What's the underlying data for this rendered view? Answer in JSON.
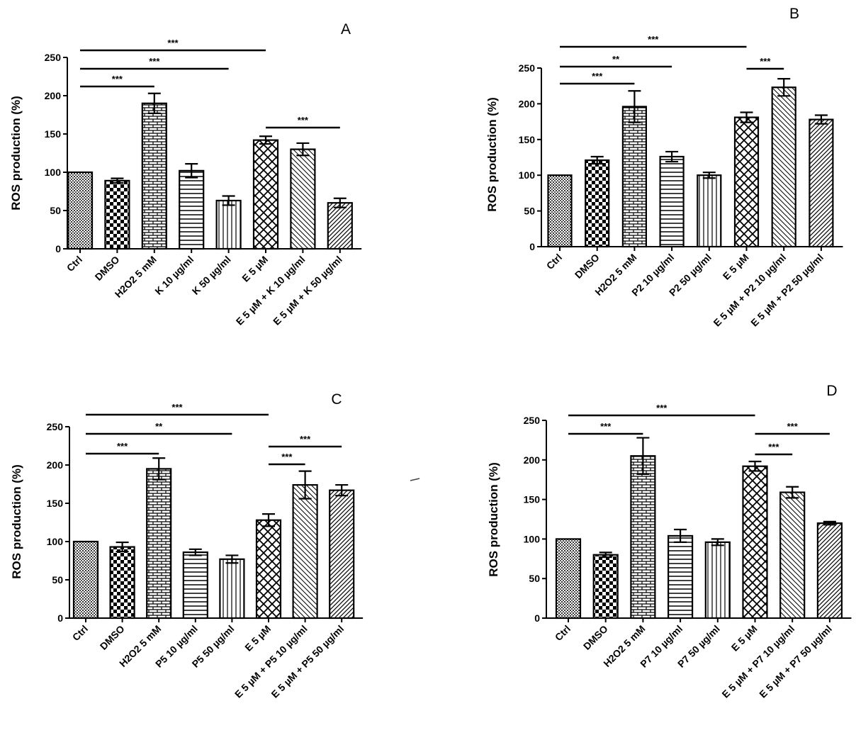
{
  "chart_data": [
    {
      "type": "bar",
      "panel": "A",
      "ylabel": "ROS production (%)",
      "ylim": [
        0,
        250
      ],
      "yticks": [
        0,
        50,
        100,
        150,
        200,
        250
      ],
      "categories": [
        "Ctrl",
        "DMSO",
        "H2O2 5 mM",
        "K 10 µg/ml",
        "K 50 µg/ml",
        "E 5 µM",
        "E 5 µM + K 10 µg/ml",
        "E 5 µM + K 50 µg/ml"
      ],
      "values": [
        100,
        89,
        190,
        102,
        63,
        142,
        130,
        60
      ],
      "errors": [
        0,
        3,
        13,
        9,
        6,
        5,
        8,
        6
      ],
      "significance": [
        {
          "from": 0,
          "to": 2,
          "label": "***"
        },
        {
          "from": 0,
          "to": 4,
          "label": "***"
        },
        {
          "from": 0,
          "to": 5,
          "label": "***"
        },
        {
          "from": 5,
          "to": 7,
          "label": "***"
        }
      ]
    },
    {
      "type": "bar",
      "panel": "B",
      "ylabel": "ROS production (%)",
      "ylim": [
        0,
        250
      ],
      "yticks": [
        0,
        50,
        100,
        150,
        200,
        250
      ],
      "categories": [
        "Ctrl",
        "DMSO",
        "H2O2 5 mM",
        "P2 10 µg/ml",
        "P2 50 µg/ml",
        "E 5 µM",
        "E 5 µM + P2 10 µg/ml",
        "E 5 µM + P2 50 µg/ml"
      ],
      "values": [
        100,
        121,
        196,
        126,
        100,
        181,
        223,
        178
      ],
      "errors": [
        0,
        5,
        22,
        7,
        4,
        7,
        12,
        6
      ],
      "significance": [
        {
          "from": 0,
          "to": 2,
          "label": "***"
        },
        {
          "from": 0,
          "to": 3,
          "label": "**"
        },
        {
          "from": 0,
          "to": 5,
          "label": "***"
        },
        {
          "from": 5,
          "to": 6,
          "label": "***"
        }
      ]
    },
    {
      "type": "bar",
      "panel": "C",
      "ylabel": "ROS production (%)",
      "ylim": [
        0,
        250
      ],
      "yticks": [
        0,
        50,
        100,
        150,
        200,
        250
      ],
      "categories": [
        "Ctrl",
        "DMSO",
        "H2O2 5 mM",
        "P5 10 µg/ml",
        "P5 50 µg/ml",
        "E 5 µM",
        "E 5 µM + P5 10 µg/ml",
        "E 5 µM + P5 50 µg/ml"
      ],
      "values": [
        100,
        93,
        195,
        86,
        77,
        128,
        174,
        167
      ],
      "errors": [
        0,
        6,
        14,
        4,
        5,
        8,
        18,
        7
      ],
      "significance": [
        {
          "from": 0,
          "to": 2,
          "label": "***"
        },
        {
          "from": 0,
          "to": 4,
          "label": "**"
        },
        {
          "from": 0,
          "to": 5,
          "label": "***"
        },
        {
          "from": 5,
          "to": 6,
          "label": "***"
        },
        {
          "from": 5,
          "to": 7,
          "label": "***"
        }
      ]
    },
    {
      "type": "bar",
      "panel": "D",
      "ylabel": "ROS production (%)",
      "ylim": [
        0,
        250
      ],
      "yticks": [
        0,
        50,
        100,
        150,
        200,
        250
      ],
      "categories": [
        "Ctrl",
        "DMSO",
        "H2O2 5 mM",
        "P7 10 µg/ml",
        "P7 50 µg/ml",
        "E 5 µM",
        "E 5 µM + P7 10 µg/ml",
        "E 5 µM + P7 50 µg/ml"
      ],
      "values": [
        100,
        80,
        205,
        104,
        96,
        192,
        159,
        120
      ],
      "errors": [
        0,
        3,
        23,
        8,
        4,
        6,
        7,
        2
      ],
      "significance": [
        {
          "from": 0,
          "to": 2,
          "label": "***"
        },
        {
          "from": 0,
          "to": 5,
          "label": "***"
        },
        {
          "from": 5,
          "to": 6,
          "label": "***"
        },
        {
          "from": 5,
          "to": 7,
          "label": "***"
        }
      ]
    }
  ]
}
